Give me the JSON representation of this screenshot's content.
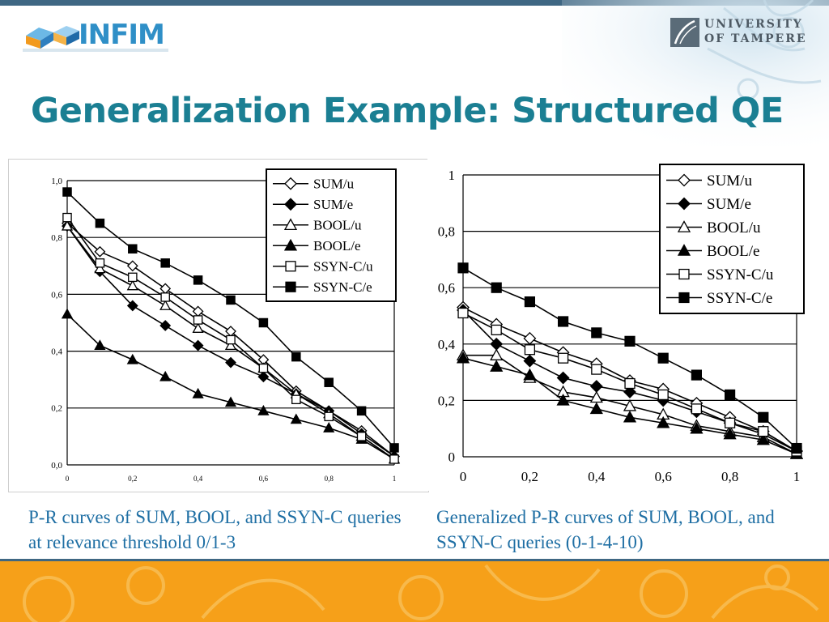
{
  "header": {
    "logo_text": "INFIM",
    "university_line1": "UNIVERSITY",
    "university_line2": "OF TAMPERE"
  },
  "slide": {
    "title": "Generalization Example: Structured QE",
    "caption_left": "P-R curves of SUM, BOOL, and SSYN-C queries at relevance threshold 0/1-3",
    "caption_right": "Generalized P-R curves of SUM, BOOL, and SSYN-C queries (0-1-4-10)"
  },
  "colors": {
    "title": "#1b7f93",
    "caption": "#1f6fa4",
    "top_bar": "#3f6783",
    "bottom_bar": "#f6a019",
    "series": "#000000"
  },
  "chart_data": [
    {
      "type": "line",
      "x": [
        0,
        0.1,
        0.2,
        0.3,
        0.4,
        0.5,
        0.6,
        0.7,
        0.8,
        0.9,
        1
      ],
      "xticks": [
        "0",
        "0,2",
        "0,4",
        "0,6",
        "0,8",
        "1"
      ],
      "yticks": [
        "0,0",
        "0,2",
        "0,4",
        "0,6",
        "0,8",
        "1,0"
      ],
      "xlim": [
        0,
        1
      ],
      "ylim": [
        0,
        1
      ],
      "grid": "horizontal",
      "legend_position": "top-right",
      "series": [
        {
          "name": "SUM/u",
          "marker": "diamond-open",
          "values": [
            0.85,
            0.75,
            0.7,
            0.62,
            0.54,
            0.47,
            0.37,
            0.26,
            0.19,
            0.12,
            0.03
          ]
        },
        {
          "name": "SUM/e",
          "marker": "diamond-filled",
          "values": [
            0.84,
            0.68,
            0.56,
            0.49,
            0.42,
            0.36,
            0.31,
            0.25,
            0.19,
            0.11,
            0.03
          ]
        },
        {
          "name": "BOOL/u",
          "marker": "triangle-open",
          "values": [
            0.84,
            0.69,
            0.63,
            0.56,
            0.48,
            0.42,
            0.34,
            0.25,
            0.18,
            0.1,
            0.02
          ]
        },
        {
          "name": "BOOL/e",
          "marker": "triangle-filled",
          "values": [
            0.53,
            0.42,
            0.37,
            0.31,
            0.25,
            0.22,
            0.19,
            0.16,
            0.13,
            0.09,
            0.02
          ]
        },
        {
          "name": "SSYN-C/u",
          "marker": "square-open",
          "values": [
            0.87,
            0.71,
            0.66,
            0.59,
            0.51,
            0.44,
            0.34,
            0.23,
            0.17,
            0.1,
            0.02
          ]
        },
        {
          "name": "SSYN-C/e",
          "marker": "square-filled",
          "values": [
            0.96,
            0.85,
            0.76,
            0.71,
            0.65,
            0.58,
            0.5,
            0.38,
            0.29,
            0.19,
            0.06
          ]
        }
      ]
    },
    {
      "type": "line",
      "x": [
        0,
        0.1,
        0.2,
        0.3,
        0.4,
        0.5,
        0.6,
        0.7,
        0.8,
        0.9,
        1
      ],
      "xticks": [
        "0",
        "0,2",
        "0,4",
        "0,6",
        "0,8",
        "1"
      ],
      "yticks": [
        "0",
        "0,2",
        "0,4",
        "0,6",
        "0,8",
        "1"
      ],
      "xlim": [
        0,
        1
      ],
      "ylim": [
        0,
        1
      ],
      "grid": "horizontal",
      "legend_position": "top-right",
      "series": [
        {
          "name": "SUM/u",
          "marker": "diamond-open",
          "values": [
            0.53,
            0.47,
            0.42,
            0.37,
            0.33,
            0.27,
            0.24,
            0.19,
            0.14,
            0.09,
            0.02
          ]
        },
        {
          "name": "SUM/e",
          "marker": "diamond-filled",
          "values": [
            0.52,
            0.4,
            0.34,
            0.28,
            0.25,
            0.23,
            0.2,
            0.16,
            0.12,
            0.08,
            0.02
          ]
        },
        {
          "name": "BOOL/u",
          "marker": "triangle-open",
          "values": [
            0.36,
            0.36,
            0.28,
            0.23,
            0.21,
            0.18,
            0.15,
            0.11,
            0.09,
            0.07,
            0.01
          ]
        },
        {
          "name": "BOOL/e",
          "marker": "triangle-filled",
          "values": [
            0.35,
            0.32,
            0.29,
            0.2,
            0.17,
            0.14,
            0.12,
            0.1,
            0.08,
            0.06,
            0.01
          ]
        },
        {
          "name": "SSYN-C/u",
          "marker": "square-open",
          "values": [
            0.51,
            0.45,
            0.38,
            0.35,
            0.31,
            0.26,
            0.22,
            0.17,
            0.12,
            0.09,
            0.02
          ]
        },
        {
          "name": "SSYN-C/e",
          "marker": "square-filled",
          "values": [
            0.67,
            0.6,
            0.55,
            0.48,
            0.44,
            0.41,
            0.35,
            0.29,
            0.22,
            0.14,
            0.03
          ]
        }
      ]
    }
  ]
}
